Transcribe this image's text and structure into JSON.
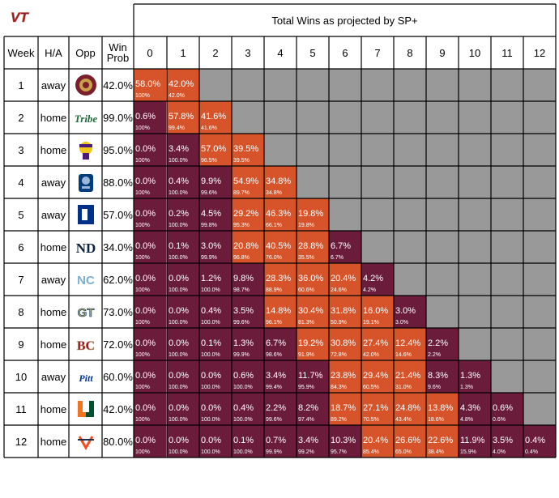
{
  "brand": "VT",
  "colors": {
    "maroon": "#6b1c3a",
    "orange": "#d7542a",
    "gray": "#999999",
    "border": "#000000"
  },
  "header": {
    "title": "Total Wins as projected by SP+",
    "week": "Week",
    "ha": "H/A",
    "opp": "Opp",
    "win_prob": "Win\nProb"
  },
  "chart_data": {
    "type": "table",
    "title": "Total Wins as projected by SP+",
    "columns": [
      "0",
      "1",
      "2",
      "3",
      "4",
      "5",
      "6",
      "7",
      "8",
      "9",
      "10",
      "11",
      "12"
    ],
    "rows": [
      {
        "week": "1",
        "ha": "away",
        "opp_icon": "fsu-logo-icon",
        "win_prob": "42.0%",
        "main": [
          "58.0%",
          "42.0%"
        ],
        "sub": [
          "100%",
          "42.0%"
        ]
      },
      {
        "week": "2",
        "ha": "home",
        "opp_icon": "tribe-logo-icon",
        "win_prob": "99.0%",
        "main": [
          "0.6%",
          "57.8%",
          "41.6%"
        ],
        "sub": [
          "100%",
          "99.4%",
          "41.6%"
        ]
      },
      {
        "week": "3",
        "ha": "home",
        "opp_icon": "pirate-logo-icon",
        "win_prob": "95.0%",
        "main": [
          "0.0%",
          "3.4%",
          "57.0%",
          "39.5%"
        ],
        "sub": [
          "100%",
          "100.0%",
          "96.5%",
          "39.5%"
        ]
      },
      {
        "week": "4",
        "ha": "away",
        "opp_icon": "monarch-logo-icon",
        "win_prob": "88.0%",
        "main": [
          "0.0%",
          "0.4%",
          "9.9%",
          "54.9%",
          "34.8%"
        ],
        "sub": [
          "100%",
          "100.0%",
          "99.6%",
          "89.7%",
          "34.8%"
        ]
      },
      {
        "week": "5",
        "ha": "away",
        "opp_icon": "duke-logo-icon",
        "win_prob": "57.0%",
        "main": [
          "0.0%",
          "0.2%",
          "4.5%",
          "29.2%",
          "46.3%",
          "19.8%"
        ],
        "sub": [
          "100%",
          "100.0%",
          "99.8%",
          "95.3%",
          "66.1%",
          "19.8%"
        ]
      },
      {
        "week": "6",
        "ha": "home",
        "opp_icon": "nd-logo-icon",
        "win_prob": "34.0%",
        "main": [
          "0.0%",
          "0.1%",
          "3.0%",
          "20.8%",
          "40.5%",
          "28.8%",
          "6.7%"
        ],
        "sub": [
          "100%",
          "100.0%",
          "99.9%",
          "96.8%",
          "76.0%",
          "35.5%",
          "6.7%"
        ]
      },
      {
        "week": "7",
        "ha": "away",
        "opp_icon": "nc-logo-icon",
        "win_prob": "62.0%",
        "main": [
          "0.0%",
          "0.0%",
          "1.2%",
          "9.8%",
          "28.3%",
          "36.0%",
          "20.4%",
          "4.2%"
        ],
        "sub": [
          "100%",
          "100.0%",
          "100.0%",
          "98.7%",
          "88.9%",
          "60.6%",
          "24.6%",
          "4.2%"
        ]
      },
      {
        "week": "8",
        "ha": "home",
        "opp_icon": "gt-logo-icon",
        "win_prob": "73.0%",
        "main": [
          "0.0%",
          "0.0%",
          "0.4%",
          "3.5%",
          "14.8%",
          "30.4%",
          "31.8%",
          "16.0%",
          "3.0%"
        ],
        "sub": [
          "100%",
          "100.0%",
          "100.0%",
          "99.6%",
          "96.1%",
          "81.3%",
          "50.9%",
          "19.1%",
          "3.0%"
        ]
      },
      {
        "week": "9",
        "ha": "home",
        "opp_icon": "bc-logo-icon",
        "win_prob": "72.0%",
        "main": [
          "0.0%",
          "0.0%",
          "0.1%",
          "1.3%",
          "6.7%",
          "19.2%",
          "30.8%",
          "27.4%",
          "12.4%",
          "2.2%"
        ],
        "sub": [
          "100%",
          "100.0%",
          "100.0%",
          "99.9%",
          "98.6%",
          "91.9%",
          "72.8%",
          "42.0%",
          "14.6%",
          "2.2%"
        ]
      },
      {
        "week": "10",
        "ha": "away",
        "opp_icon": "pitt-logo-icon",
        "win_prob": "60.0%",
        "main": [
          "0.0%",
          "0.0%",
          "0.0%",
          "0.6%",
          "3.4%",
          "11.7%",
          "23.8%",
          "29.4%",
          "21.4%",
          "8.3%",
          "1.3%"
        ],
        "sub": [
          "100%",
          "100.0%",
          "100.0%",
          "100.0%",
          "99.4%",
          "95.9%",
          "84.3%",
          "60.5%",
          "31.0%",
          "9.6%",
          "1.3%"
        ]
      },
      {
        "week": "11",
        "ha": "home",
        "opp_icon": "miami-logo-icon",
        "win_prob": "42.0%",
        "main": [
          "0.0%",
          "0.0%",
          "0.0%",
          "0.4%",
          "2.2%",
          "8.2%",
          "18.7%",
          "27.1%",
          "24.8%",
          "13.8%",
          "4.3%",
          "0.6%"
        ],
        "sub": [
          "100%",
          "100.0%",
          "100.0%",
          "100.0%",
          "99.6%",
          "97.4%",
          "89.2%",
          "70.5%",
          "43.4%",
          "18.6%",
          "4.8%",
          "0.6%"
        ]
      },
      {
        "week": "12",
        "ha": "home",
        "opp_icon": "uva-logo-icon",
        "win_prob": "80.0%",
        "main": [
          "0.0%",
          "0.0%",
          "0.0%",
          "0.1%",
          "0.7%",
          "3.4%",
          "10.3%",
          "20.4%",
          "26.6%",
          "22.6%",
          "11.9%",
          "3.5%",
          "0.4%"
        ],
        "sub": [
          "100%",
          "100.0%",
          "100.0%",
          "100.0%",
          "99.9%",
          "99.2%",
          "95.7%",
          "85.4%",
          "65.0%",
          "38.4%",
          "15.9%",
          "4.0%",
          "0.4%"
        ]
      }
    ]
  }
}
